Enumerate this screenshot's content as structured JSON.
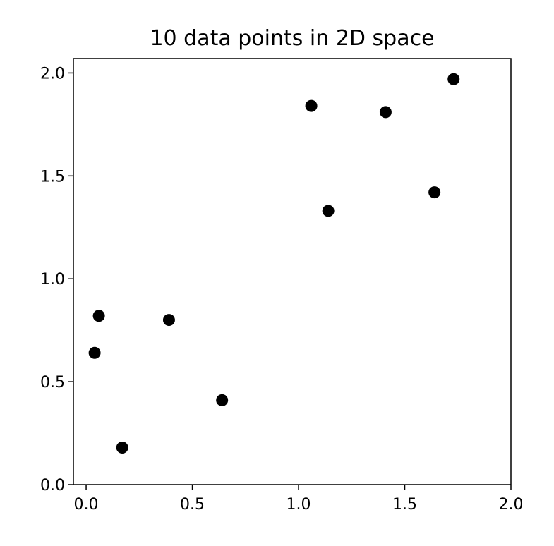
{
  "chart_data": {
    "type": "scatter",
    "title": "10 data points in 2D space",
    "xlabel": "",
    "ylabel": "",
    "xlim": [
      -0.06,
      2.0
    ],
    "ylim": [
      0.0,
      2.07
    ],
    "xticks": [
      0.0,
      0.5,
      1.0,
      1.5,
      2.0
    ],
    "xtick_labels": [
      "0.0",
      "0.5",
      "1.0",
      "1.5",
      "2.0"
    ],
    "yticks": [
      0.0,
      0.5,
      1.0,
      1.5,
      2.0
    ],
    "ytick_labels": [
      "0.0",
      "0.5",
      "1.0",
      "1.5",
      "2.0"
    ],
    "grid": false,
    "marker_color": "#000000",
    "points": [
      {
        "x": 0.04,
        "y": 0.64
      },
      {
        "x": 0.06,
        "y": 0.82
      },
      {
        "x": 0.17,
        "y": 0.18
      },
      {
        "x": 0.39,
        "y": 0.8
      },
      {
        "x": 0.64,
        "y": 0.41
      },
      {
        "x": 1.06,
        "y": 1.84
      },
      {
        "x": 1.14,
        "y": 1.33
      },
      {
        "x": 1.41,
        "y": 1.81
      },
      {
        "x": 1.64,
        "y": 1.42
      },
      {
        "x": 1.73,
        "y": 1.97
      }
    ]
  }
}
